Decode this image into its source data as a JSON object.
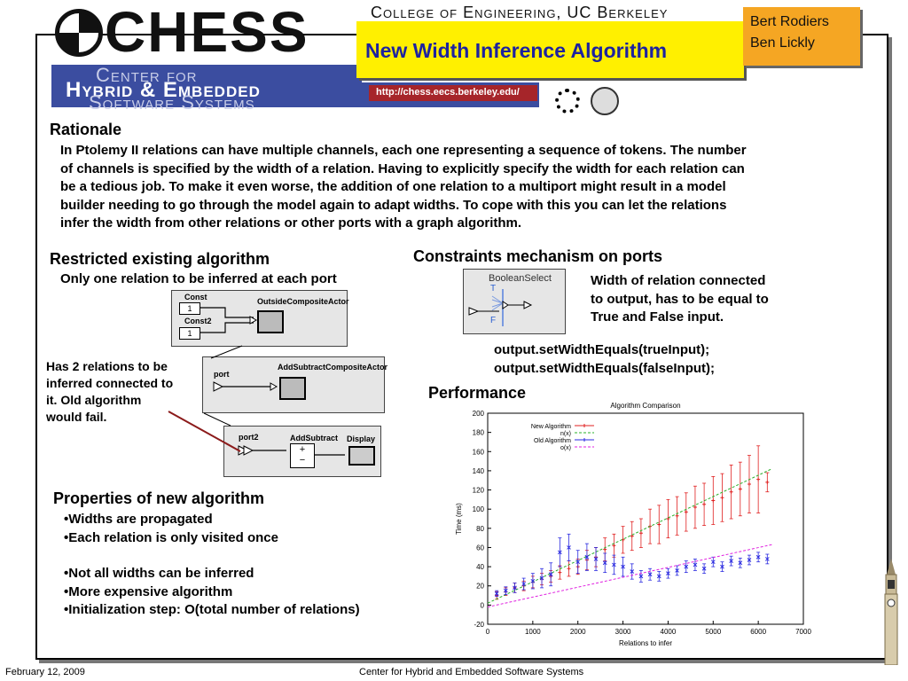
{
  "header": {
    "logo_text": "CHESS",
    "college": "College of Engineering, UC Berkeley",
    "center_line1": "Center for",
    "center_line2": "Hybrid & Embedded",
    "center_line3": "Software Systems",
    "title": "New Width Inference Algorithm",
    "authors": [
      "Bert Rodiers",
      "Ben Lickly"
    ],
    "url": "http://chess.eecs.berkeley.edu/"
  },
  "rationale": {
    "heading": "Rationale",
    "lines": [
      "In Ptolemy II relations can have multiple channels, each one representing a sequence of tokens. The number",
      "of channels is specified by the width of a relation. Having to explicitly specify the width for each relation can",
      "be a tedious job. To make it even worse, the addition of one relation to a multiport might result in a model",
      "builder needing to go through the model again to adapt widths. To cope with this you can let the relations",
      "infer the width from other relations or other ports with a graph algorithm."
    ]
  },
  "restricted": {
    "heading": "Restricted existing algorithm",
    "sub": "Only one relation to be inferred at each port",
    "note_lines": [
      "Has 2 relations to be",
      "inferred connected to",
      "it. Old algorithm",
      "would fail."
    ],
    "diagram1": {
      "const1": "Const",
      "const2": "Const2",
      "one": "1",
      "actor": "OutsideCompositeActor"
    },
    "diagram2": {
      "port": "port",
      "actor": "AddSubtractCompositeActor"
    },
    "diagram3": {
      "port": "port2",
      "addsub": "AddSubtract",
      "display": "Display",
      "plus": "+",
      "minus": "−"
    }
  },
  "constraints": {
    "heading": "Constraints mechanism on ports",
    "actor_name": "BooleanSelect",
    "t_label": "T",
    "f_label": "F",
    "desc_lines": [
      "Width of relation connected",
      "to output, has to be equal to",
      "True and False input."
    ],
    "code_lines": [
      "output.setWidthEquals(trueInput);",
      "output.setWidthEquals(falseInput);"
    ]
  },
  "properties": {
    "heading": "Properties of new algorithm",
    "items": [
      "•Widths are propagated",
      "•Each relation is only visited once",
      "•Not all widths can be inferred",
      "•More expensive algorithm",
      "•Initialization step: O(total number of relations)"
    ]
  },
  "performance": {
    "heading": "Performance"
  },
  "chart_data": {
    "type": "scatter",
    "title": "Algorithm Comparison",
    "xlabel": "Relations to infer",
    "ylabel": "Time (ms)",
    "xlim": [
      0,
      7000
    ],
    "ylim": [
      -20,
      200
    ],
    "xticks": [
      0,
      1000,
      2000,
      3000,
      4000,
      5000,
      6000,
      7000
    ],
    "yticks": [
      -20,
      0,
      20,
      40,
      60,
      80,
      100,
      120,
      140,
      160,
      180,
      200
    ],
    "legend_position": "top-left",
    "series": [
      {
        "name": "New Algorithm",
        "color": "#e02020",
        "marker": "plus",
        "x": [
          200,
          400,
          600,
          800,
          1000,
          1200,
          1400,
          1600,
          1800,
          2000,
          2200,
          2400,
          2600,
          2800,
          3000,
          3200,
          3400,
          3600,
          3800,
          4000,
          4200,
          4400,
          4600,
          4800,
          5000,
          5200,
          5400,
          5600,
          5800,
          6000,
          6200
        ],
        "y": [
          10,
          14,
          18,
          20,
          24,
          27,
          30,
          34,
          38,
          40,
          47,
          50,
          58,
          62,
          68,
          72,
          75,
          82,
          84,
          90,
          93,
          97,
          102,
          105,
          109,
          112,
          118,
          121,
          126,
          131,
          128
        ],
        "err": [
          4,
          4,
          5,
          5,
          6,
          6,
          6,
          7,
          8,
          8,
          10,
          10,
          12,
          12,
          14,
          15,
          15,
          18,
          20,
          20,
          20,
          20,
          22,
          22,
          25,
          25,
          28,
          28,
          30,
          35,
          10
        ]
      },
      {
        "name": "n(x)",
        "color": "#2ab02a",
        "line": "dashed",
        "x": [
          0,
          6300
        ],
        "y": [
          2,
          142
        ]
      },
      {
        "name": "Old Algorithm",
        "color": "#2a2ae0",
        "marker": "cross",
        "x": [
          200,
          400,
          600,
          800,
          1000,
          1200,
          1400,
          1600,
          1800,
          2000,
          2200,
          2400,
          2600,
          2800,
          3000,
          3200,
          3400,
          3600,
          3800,
          4000,
          4200,
          4400,
          4600,
          4800,
          5000,
          5200,
          5400,
          5600,
          5800,
          6000,
          6200
        ],
        "y": [
          12,
          15,
          18,
          22,
          25,
          28,
          32,
          55,
          60,
          45,
          50,
          48,
          44,
          42,
          40,
          35,
          30,
          32,
          30,
          33,
          36,
          40,
          42,
          38,
          45,
          40,
          46,
          44,
          47,
          50,
          48
        ],
        "err": [
          3,
          4,
          5,
          6,
          8,
          10,
          12,
          15,
          14,
          12,
          14,
          12,
          10,
          10,
          10,
          8,
          6,
          6,
          5,
          5,
          5,
          6,
          6,
          5,
          5,
          5,
          5,
          5,
          5,
          5,
          5
        ]
      },
      {
        "name": "o(x)",
        "color": "#e020e0",
        "line": "dashed",
        "x": [
          0,
          6300
        ],
        "y": [
          -2,
          63
        ]
      }
    ]
  },
  "footer": {
    "date": "February 12, 2009",
    "center": "Center for Hybrid and Embedded Software Systems"
  }
}
